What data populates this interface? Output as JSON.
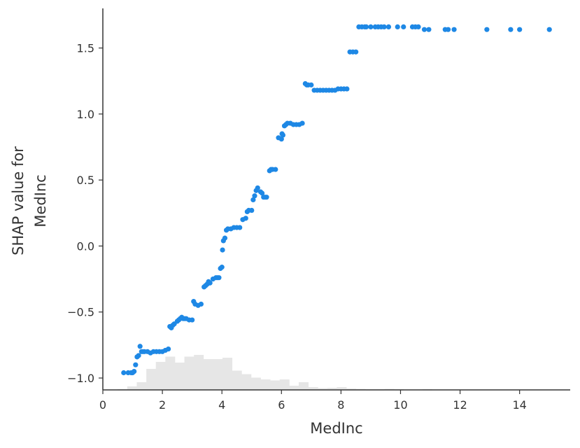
{
  "chart_data": {
    "type": "scatter",
    "title": "",
    "xlabel": "MedInc",
    "ylabel_lines": [
      "SHAP value for",
      "MedInc"
    ],
    "xlim": [
      0,
      15.7
    ],
    "ylim": [
      -1.09,
      1.8
    ],
    "xticks": [
      0,
      2,
      4,
      6,
      8,
      10,
      12,
      14
    ],
    "xtick_labels": [
      "0",
      "2",
      "4",
      "6",
      "8",
      "10",
      "12",
      "14"
    ],
    "yticks": [
      -1.0,
      -0.5,
      0.0,
      0.5,
      1.0,
      1.5
    ],
    "ytick_labels": [
      "−1.0",
      "−0.5",
      "0.0",
      "0.5",
      "1.0",
      "1.5"
    ],
    "grid": false,
    "colors": {
      "points": "#1e88e5",
      "histogram": "#e6e6e6",
      "axis": "#333333"
    },
    "background_histogram": {
      "description_note": "",
      "bin_edges": [
        0.5,
        0.82,
        1.14,
        1.46,
        1.78,
        2.1,
        2.42,
        2.74,
        3.06,
        3.38,
        3.7,
        4.02,
        4.34,
        4.66,
        4.98,
        5.3,
        5.62,
        5.94,
        6.26,
        6.58,
        6.9,
        7.22,
        7.54,
        7.86,
        8.18,
        8.5,
        8.82,
        9.14,
        9.46,
        9.78,
        10.1,
        10.42,
        10.74,
        11.06,
        11.38,
        11.7,
        12.02,
        12.34,
        12.66,
        12.98,
        13.3,
        13.62,
        13.94,
        14.26,
        14.58,
        14.9,
        15.22
      ],
      "counts": [
        0.02,
        0.1,
        0.22,
        0.6,
        0.8,
        0.95,
        0.78,
        0.95,
        1.0,
        0.88,
        0.88,
        0.92,
        0.55,
        0.45,
        0.35,
        0.3,
        0.27,
        0.3,
        0.12,
        0.22,
        0.08,
        0.05,
        0.06,
        0.08,
        0.04,
        0.03,
        0.02,
        0.02,
        0.03,
        0.02,
        0.01,
        0.01,
        0.02,
        0.01,
        0.01,
        0.01,
        0.01,
        0.01,
        0.01,
        0.01,
        0.01,
        0.01,
        0.01,
        0.01,
        0.01,
        0.01
      ]
    },
    "series": [
      {
        "x": [
          0.7,
          0.85,
          0.95,
          1.0,
          1.05,
          1.1,
          1.15,
          1.2,
          1.25,
          1.3,
          1.35,
          1.4,
          1.5,
          1.6,
          1.7,
          1.8,
          1.9,
          2.0,
          2.1,
          2.2,
          2.25,
          2.3,
          2.35,
          2.4,
          2.5,
          2.55,
          2.6,
          2.65,
          2.7,
          2.75,
          2.8,
          2.9,
          3.0,
          3.05,
          3.1,
          3.2,
          3.3,
          3.4,
          3.45,
          3.5,
          3.55,
          3.6,
          3.7,
          3.8,
          3.85,
          3.9,
          3.95,
          4.0,
          4.02,
          4.05,
          4.1,
          4.15,
          4.2,
          4.3,
          4.4,
          4.5,
          4.6,
          4.7,
          4.8,
          4.85,
          4.9,
          5.0,
          5.05,
          5.1,
          5.15,
          5.2,
          5.3,
          5.35,
          5.4,
          5.45,
          5.5,
          5.6,
          5.65,
          5.7,
          5.8,
          5.9,
          6.0,
          6.02,
          6.05,
          6.1,
          6.15,
          6.2,
          6.3,
          6.4,
          6.5,
          6.6,
          6.7,
          6.8,
          6.85,
          6.9,
          7.0,
          7.1,
          7.2,
          7.3,
          7.4,
          7.5,
          7.6,
          7.7,
          7.8,
          7.9,
          8.0,
          8.1,
          8.2,
          8.3,
          8.4,
          8.5,
          8.6,
          8.7,
          8.8,
          8.85,
          9.0,
          9.15,
          9.25,
          9.35,
          9.45,
          9.6,
          9.9,
          10.1,
          10.4,
          10.5,
          10.6,
          10.8,
          10.95,
          11.5,
          11.6,
          11.8,
          12.9,
          13.7,
          14.0,
          15.0
        ],
        "y": [
          -0.96,
          -0.96,
          -0.96,
          -0.96,
          -0.95,
          -0.9,
          -0.84,
          -0.83,
          -0.76,
          -0.8,
          -0.8,
          -0.8,
          -0.8,
          -0.81,
          -0.8,
          -0.8,
          -0.8,
          -0.8,
          -0.79,
          -0.78,
          -0.61,
          -0.62,
          -0.6,
          -0.59,
          -0.57,
          -0.56,
          -0.55,
          -0.54,
          -0.55,
          -0.55,
          -0.55,
          -0.56,
          -0.56,
          -0.42,
          -0.44,
          -0.45,
          -0.44,
          -0.31,
          -0.3,
          -0.29,
          -0.27,
          -0.28,
          -0.25,
          -0.24,
          -0.24,
          -0.24,
          -0.17,
          -0.16,
          -0.03,
          0.04,
          0.06,
          0.12,
          0.13,
          0.13,
          0.14,
          0.14,
          0.14,
          0.2,
          0.21,
          0.26,
          0.27,
          0.27,
          0.35,
          0.38,
          0.42,
          0.44,
          0.41,
          0.4,
          0.37,
          0.37,
          0.37,
          0.57,
          0.58,
          0.58,
          0.58,
          0.82,
          0.81,
          0.85,
          0.84,
          0.91,
          0.92,
          0.93,
          0.93,
          0.92,
          0.92,
          0.92,
          0.93,
          1.23,
          1.22,
          1.22,
          1.22,
          1.18,
          1.18,
          1.18,
          1.18,
          1.18,
          1.18,
          1.18,
          1.18,
          1.19,
          1.19,
          1.19,
          1.19,
          1.47,
          1.47,
          1.47,
          1.66,
          1.66,
          1.66,
          1.66,
          1.66,
          1.66,
          1.66,
          1.66,
          1.66,
          1.66,
          1.66,
          1.66,
          1.66,
          1.66,
          1.66,
          1.64,
          1.64,
          1.64,
          1.64,
          1.64,
          1.64,
          1.64,
          1.64,
          1.64
        ]
      }
    ]
  }
}
